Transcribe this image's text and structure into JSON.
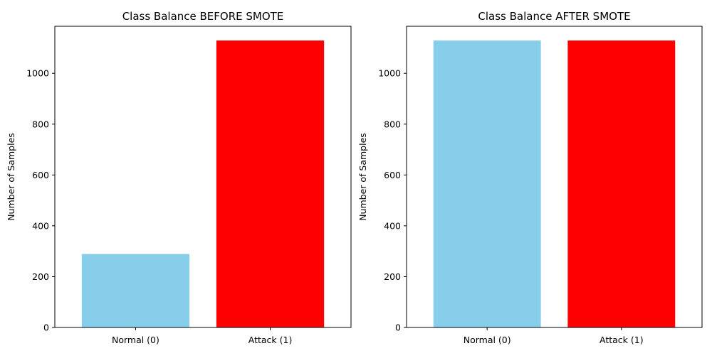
{
  "chart_data": [
    {
      "type": "bar",
      "title": "Class Balance BEFORE SMOTE",
      "xlabel": "",
      "ylabel": "Number of Samples",
      "categories": [
        "Normal (0)",
        "Attack (1)"
      ],
      "values": [
        289,
        1129
      ],
      "colors": [
        "#87ceeb",
        "#ff0000"
      ],
      "ylim": [
        0,
        1185
      ],
      "yticks": [
        0,
        200,
        400,
        600,
        800,
        1000
      ],
      "grid": false,
      "legend": "none"
    },
    {
      "type": "bar",
      "title": "Class Balance AFTER SMOTE",
      "xlabel": "",
      "ylabel": "Number of Samples",
      "categories": [
        "Normal (0)",
        "Attack (1)"
      ],
      "values": [
        1129,
        1129
      ],
      "colors": [
        "#87ceeb",
        "#ff0000"
      ],
      "ylim": [
        0,
        1185
      ],
      "yticks": [
        0,
        200,
        400,
        600,
        800,
        1000
      ],
      "grid": false,
      "legend": "none"
    }
  ]
}
